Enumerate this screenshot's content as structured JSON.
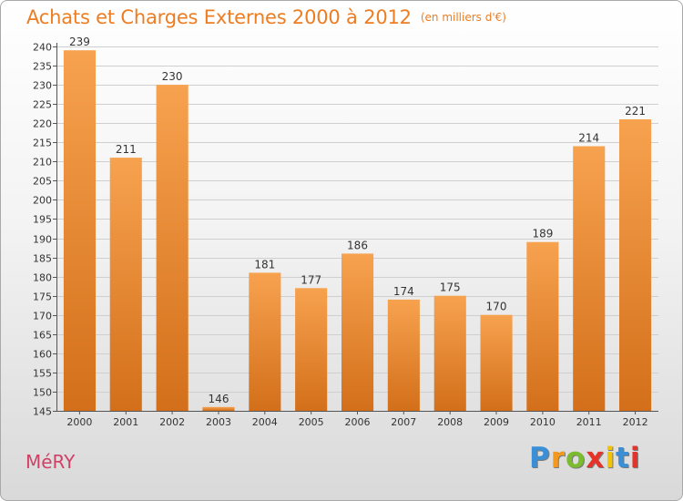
{
  "header": {
    "title": "Achats et Charges Externes 2000 à 2012",
    "unit": "(en milliers d'€)"
  },
  "footer": {
    "town": "MéRY",
    "logo_letters": [
      "P",
      "r",
      "o",
      "x",
      "i",
      "t",
      "i"
    ],
    "logo_colors": [
      "#3a8fd6",
      "#f39a1e",
      "#7bbb2e",
      "#e6332a",
      "#f3c400",
      "#3a8fd6",
      "#e6332a"
    ]
  },
  "colors": {
    "bar_top": "#f7a24f",
    "bar_bottom": "#d36f1a",
    "title": "#ed7d22",
    "town": "#d04167"
  },
  "chart_data": {
    "type": "bar",
    "title": "Achats et Charges Externes 2000 à 2012",
    "subtitle": "(en milliers d'€)",
    "categories": [
      "2000",
      "2001",
      "2002",
      "2003",
      "2004",
      "2005",
      "2006",
      "2007",
      "2008",
      "2009",
      "2010",
      "2011",
      "2012"
    ],
    "values": [
      239,
      211,
      230,
      146,
      181,
      177,
      186,
      174,
      175,
      170,
      189,
      214,
      221
    ],
    "ylim": [
      145,
      240
    ],
    "yticks": [
      145,
      150,
      155,
      160,
      165,
      170,
      175,
      180,
      185,
      190,
      195,
      200,
      205,
      210,
      215,
      220,
      225,
      230,
      235,
      240
    ],
    "grid": true,
    "xlabel": "",
    "ylabel": ""
  }
}
